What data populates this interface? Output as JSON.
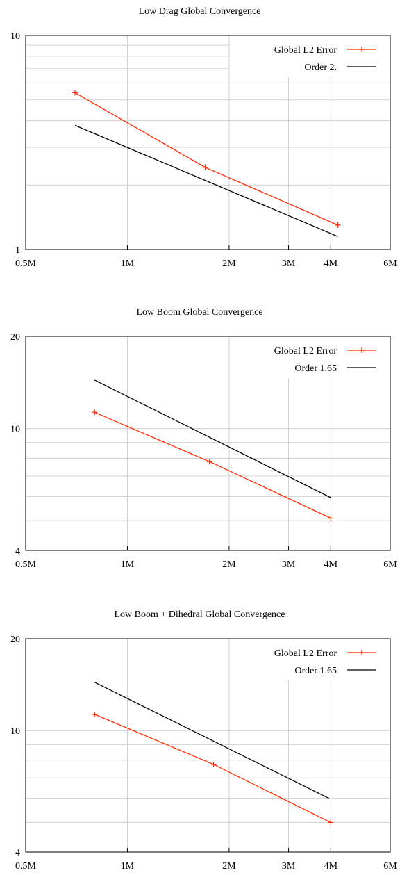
{
  "chart_data": [
    {
      "type": "line",
      "title": "Low Drag Global Convergence",
      "xlabel": "",
      "ylabel": "",
      "xscale": "log",
      "yscale": "log",
      "xlim": [
        500000,
        6000000
      ],
      "ylim": [
        1,
        10
      ],
      "xticks": [
        500000,
        1000000,
        2000000,
        3000000,
        4000000,
        6000000
      ],
      "xtick_labels": [
        "0.5M",
        "1M",
        "2M",
        "3M",
        "4M",
        "6M"
      ],
      "yticks": [
        1,
        10
      ],
      "ytick_labels": [
        "1",
        "10"
      ],
      "grid": true,
      "legend_position": "top-right",
      "series": [
        {
          "name": "Global L2 Error",
          "color": "#ff2a00",
          "marker": "plus",
          "x": [
            700000,
            1700000,
            4200000
          ],
          "y": [
            5.4,
            2.42,
            1.3
          ]
        },
        {
          "name": "Order 2.",
          "color": "#000000",
          "marker": "none",
          "x": [
            700000,
            4200000
          ],
          "y": [
            3.8,
            1.15
          ]
        }
      ]
    },
    {
      "type": "line",
      "title": "Low Boom Global Convergence",
      "xlabel": "",
      "ylabel": "",
      "xscale": "log",
      "yscale": "log",
      "xlim": [
        500000,
        6000000
      ],
      "ylim": [
        4,
        20
      ],
      "xticks": [
        500000,
        1000000,
        2000000,
        3000000,
        4000000,
        6000000
      ],
      "xtick_labels": [
        "0.5M",
        "1M",
        "2M",
        "3M",
        "4M",
        "6M"
      ],
      "yticks": [
        4,
        10,
        20
      ],
      "ytick_labels": [
        "4",
        "10",
        "20"
      ],
      "grid": true,
      "legend_position": "top-right",
      "series": [
        {
          "name": "Global L2 Error",
          "color": "#ff2a00",
          "marker": "plus",
          "x": [
            800000,
            1750000,
            4000000
          ],
          "y": [
            11.3,
            7.8,
            5.1
          ]
        },
        {
          "name": "Order 1.65",
          "color": "#000000",
          "marker": "none",
          "x": [
            800000,
            4000000
          ],
          "y": [
            14.4,
            5.95
          ]
        }
      ]
    },
    {
      "type": "line",
      "title": "Low Boom + Dihedral Global Convergence",
      "xlabel": "",
      "ylabel": "",
      "xscale": "log",
      "yscale": "log",
      "xlim": [
        500000,
        6000000
      ],
      "ylim": [
        4,
        20
      ],
      "xticks": [
        500000,
        1000000,
        2000000,
        3000000,
        4000000,
        6000000
      ],
      "xtick_labels": [
        "0.5M",
        "1M",
        "2M",
        "3M",
        "4M",
        "6M"
      ],
      "yticks": [
        4,
        10,
        20
      ],
      "ytick_labels": [
        "4",
        "10",
        "20"
      ],
      "grid": true,
      "legend_position": "top-right",
      "series": [
        {
          "name": "Global L2 Error",
          "color": "#ff2a00",
          "marker": "plus",
          "x": [
            800000,
            1800000,
            4000000
          ],
          "y": [
            11.3,
            7.75,
            5.0
          ]
        },
        {
          "name": "Order 1.65",
          "color": "#000000",
          "marker": "none",
          "x": [
            800000,
            3950000
          ],
          "y": [
            14.4,
            6.0
          ]
        }
      ]
    }
  ]
}
